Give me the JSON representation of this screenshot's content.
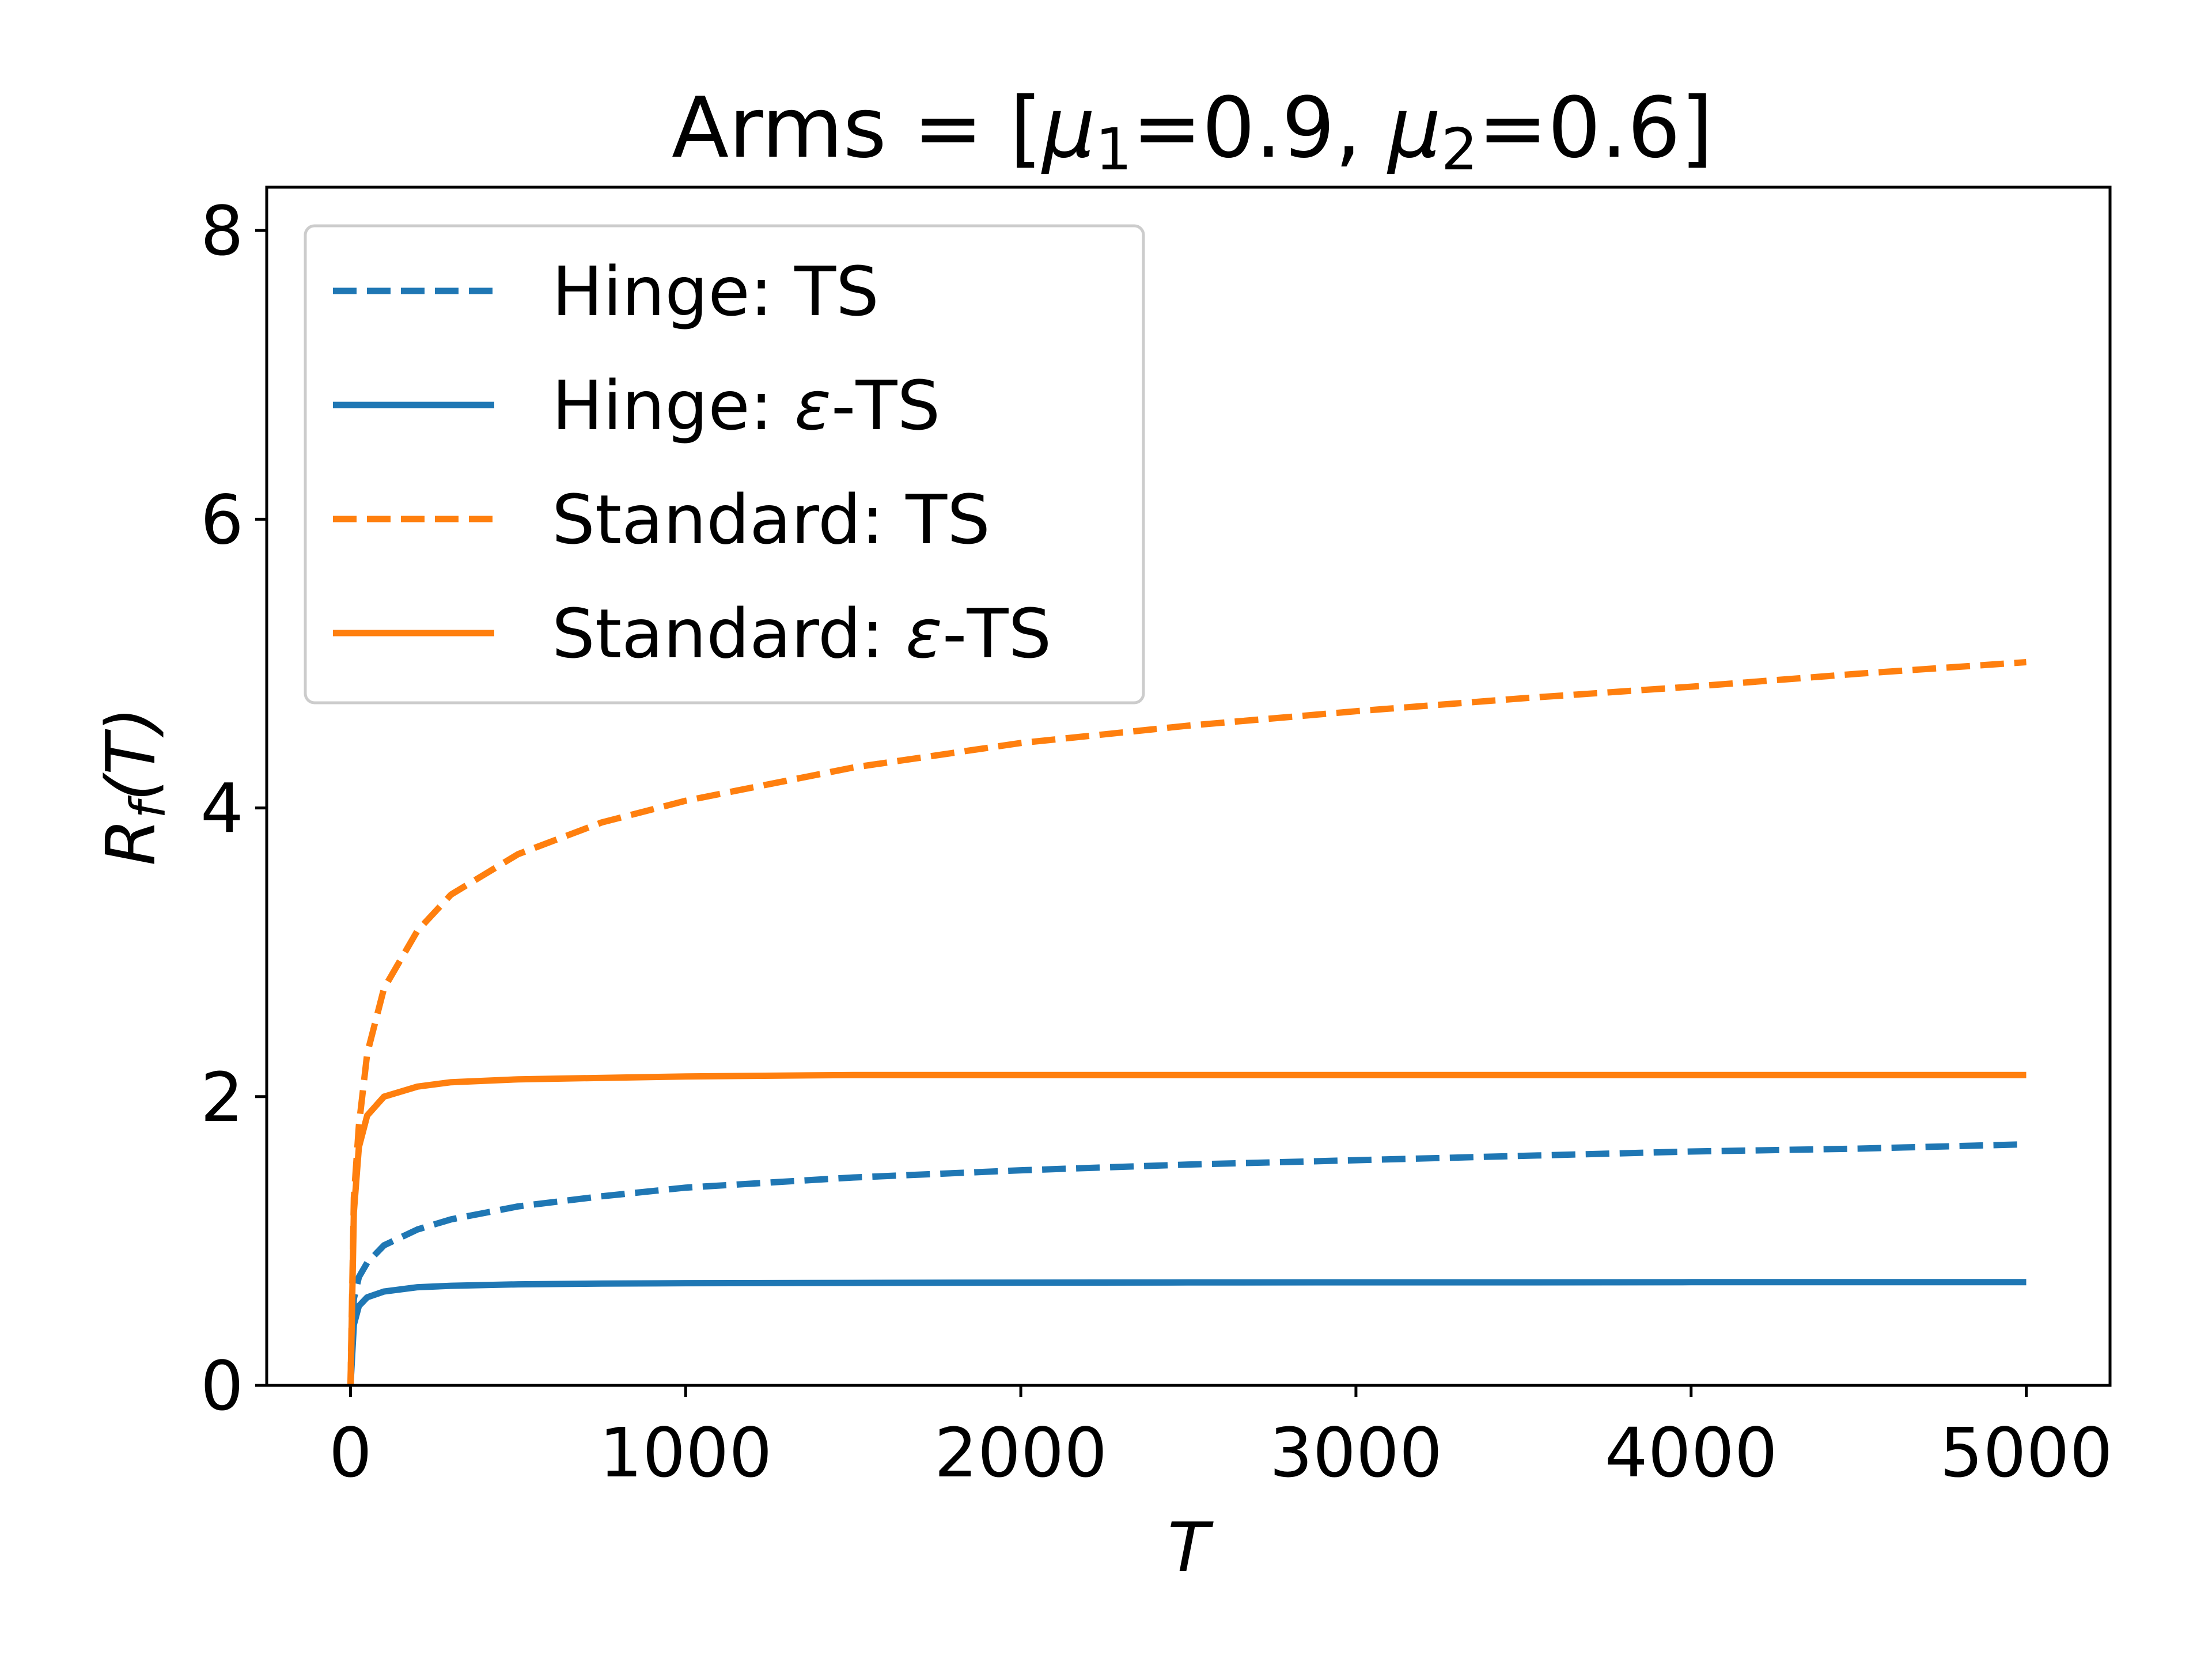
{
  "chart_data": {
    "type": "line",
    "title": "Arms = [μ1=0.9, μ2=0.6]",
    "title_parts": {
      "prefix": "Arms = [",
      "mu": "μ",
      "sub1": "1",
      "val1": "=0.9, ",
      "sub2": "2",
      "val2": "=0.6]"
    },
    "xlabel": "T",
    "ylabel": {
      "main": "R",
      "sub": "f",
      "arg": "(T)"
    },
    "xlim": [
      -250,
      5250
    ],
    "ylim": [
      0,
      8.3
    ],
    "xticks": [
      0,
      1000,
      2000,
      3000,
      4000,
      5000
    ],
    "xtick_labels": [
      "0",
      "1000",
      "2000",
      "3000",
      "4000",
      "5000"
    ],
    "yticks": [
      0,
      2,
      4,
      6,
      8
    ],
    "ytick_labels": [
      "0",
      "2",
      "4",
      "6",
      "8"
    ],
    "grid": false,
    "legend_position": "top-left",
    "series": [
      {
        "name": "Hinge: TS",
        "legend_parts": [
          "Hinge: TS"
        ],
        "color": "#1f77b4",
        "style": "dashed",
        "x": [
          0,
          10,
          25,
          50,
          100,
          200,
          300,
          500,
          750,
          1000,
          1500,
          2000,
          2500,
          3000,
          3500,
          4000,
          4500,
          5000
        ],
        "y": [
          0.0,
          0.6,
          0.75,
          0.85,
          0.97,
          1.08,
          1.15,
          1.24,
          1.31,
          1.37,
          1.44,
          1.49,
          1.53,
          1.56,
          1.59,
          1.62,
          1.64,
          1.67
        ]
      },
      {
        "name": "Hinge: ε-TS",
        "legend_parts": [
          "Hinge: ",
          "ε",
          "-TS"
        ],
        "color": "#1f77b4",
        "style": "solid",
        "x": [
          0,
          10,
          25,
          50,
          100,
          200,
          300,
          500,
          750,
          1000,
          1500,
          2000,
          2500,
          3000,
          3500,
          4000,
          4500,
          5000
        ],
        "y": [
          0.0,
          0.42,
          0.55,
          0.61,
          0.65,
          0.68,
          0.69,
          0.7,
          0.705,
          0.708,
          0.71,
          0.712,
          0.713,
          0.714,
          0.714,
          0.715,
          0.715,
          0.715
        ]
      },
      {
        "name": "Standard: TS",
        "legend_parts": [
          "Standard: TS"
        ],
        "color": "#ff7f0e",
        "style": "dashed",
        "x": [
          0,
          10,
          25,
          50,
          100,
          200,
          300,
          500,
          750,
          1000,
          1500,
          2000,
          2500,
          3000,
          3500,
          4000,
          4500,
          5000
        ],
        "y": [
          0.0,
          1.3,
          1.8,
          2.3,
          2.75,
          3.15,
          3.4,
          3.68,
          3.9,
          4.05,
          4.28,
          4.45,
          4.57,
          4.67,
          4.76,
          4.84,
          4.93,
          5.01
        ]
      },
      {
        "name": "Standard: ε-TS",
        "legend_parts": [
          "Standard: ",
          "ε",
          "-TS"
        ],
        "color": "#ff7f0e",
        "style": "solid",
        "x": [
          0,
          10,
          25,
          50,
          100,
          200,
          300,
          500,
          750,
          1000,
          1500,
          2000,
          2500,
          3000,
          3500,
          4000,
          4500,
          5000
        ],
        "y": [
          0.0,
          1.2,
          1.65,
          1.87,
          2.0,
          2.07,
          2.1,
          2.12,
          2.13,
          2.14,
          2.15,
          2.15,
          2.15,
          2.15,
          2.15,
          2.15,
          2.15,
          2.15
        ]
      }
    ]
  }
}
